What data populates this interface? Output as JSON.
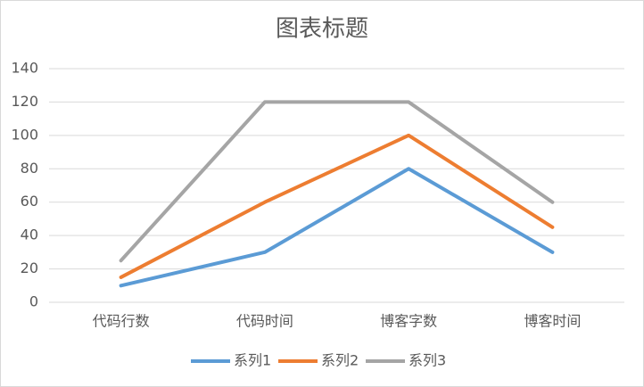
{
  "chart_data": {
    "type": "line",
    "title": "图表标题",
    "categories": [
      "代码行数",
      "代码时间",
      "博客字数",
      "博客时间"
    ],
    "series": [
      {
        "name": "系列1",
        "color": "#5b9bd5",
        "values": [
          10,
          30,
          80,
          30
        ]
      },
      {
        "name": "系列2",
        "color": "#ed7d31",
        "values": [
          15,
          60,
          100,
          45
        ]
      },
      {
        "name": "系列3",
        "color": "#a5a5a5",
        "values": [
          25,
          120,
          120,
          60
        ]
      }
    ],
    "ylim": [
      0,
      140
    ],
    "yticks": [
      0,
      20,
      40,
      60,
      80,
      100,
      120,
      140
    ],
    "grid": true,
    "legend": "bottom"
  }
}
